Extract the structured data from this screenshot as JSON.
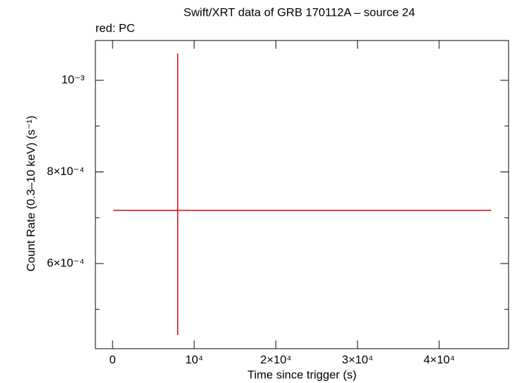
{
  "chart_data": {
    "type": "scatter",
    "title": "Swift/XRT data of GRB 170112A – source 24",
    "subtitle": "red: PC",
    "x_label": "Time since trigger (s)",
    "y_label": "Count Rate (0.3–10 keV) (s⁻¹)",
    "xlim": [
      -2100,
      48500
    ],
    "ylim": [
      0.0004142,
      0.0010869
    ],
    "xticks": [
      0,
      {
        "value": 10000,
        "label": "10⁴"
      },
      {
        "value": 20000,
        "label": "2×10⁴"
      },
      {
        "value": 30000,
        "label": "3×10⁴"
      },
      {
        "value": 40000,
        "label": "4×10⁴"
      }
    ],
    "yticks": [
      {
        "value": 0.0006,
        "label": "6×10⁻⁴"
      },
      {
        "value": 0.0008,
        "label": "8×10⁻⁴"
      },
      {
        "value": 0.001,
        "label": "10⁻³"
      }
    ],
    "yminorticks": [
      0.0005,
      0.0007,
      0.0009
    ],
    "series": [
      {
        "name": "PC",
        "color": "#d40000",
        "x": [
          7980
        ],
        "xerr_minus": [
          7900
        ],
        "xerr_plus": [
          38400
        ],
        "y": [
          0.0007161
        ],
        "yerr_minus": [
          0.0002719
        ],
        "yerr_plus": [
          0.0003423
        ]
      }
    ]
  }
}
